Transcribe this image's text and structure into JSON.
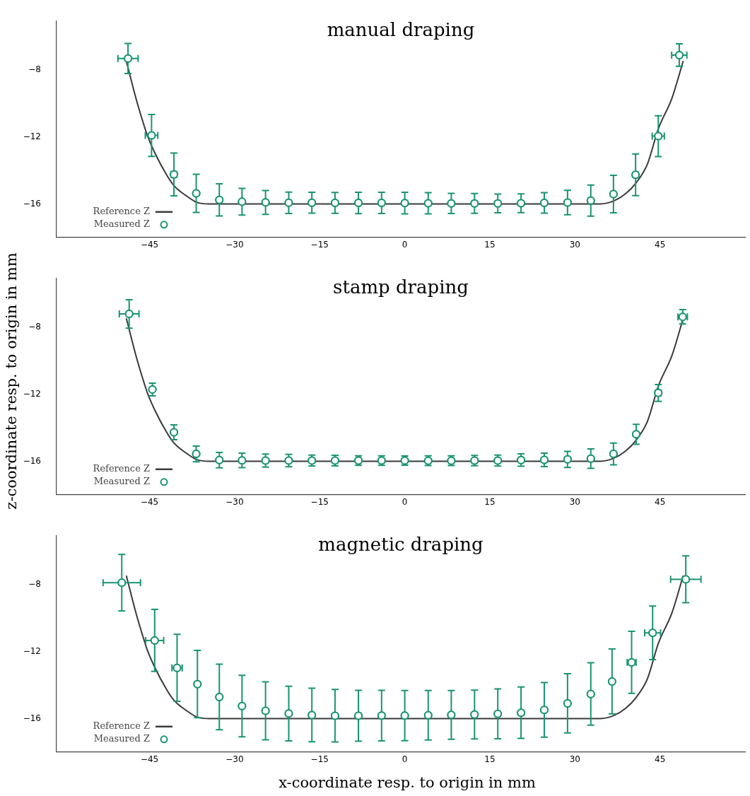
{
  "chart_data": [
    {
      "type": "scatter",
      "title": "manual draping",
      "xlim": [
        -61.4,
        60
      ],
      "xticks": [
        -45,
        -30,
        -15,
        0,
        15,
        30,
        45
      ],
      "ylim": [
        -18,
        -5.05
      ],
      "yticks": [
        -16,
        -12,
        -8
      ],
      "legend": "bottom left",
      "grid": false,
      "series": [
        {
          "name": "Reference Z",
          "type": "line",
          "color": "#3a3a3a",
          "marker": "none",
          "x": [
            -49.1,
            -47.4,
            -46.26,
            -45.4,
            -44.07,
            -42.0,
            -40.7,
            -38.3,
            -36.7,
            -34.5,
            34.5,
            36.8,
            38.9,
            40.7,
            42.8,
            44.7,
            47.1,
            49.1
          ],
          "values": [
            -7.46,
            -9.69,
            -11.0,
            -11.9,
            -12.95,
            -14.26,
            -14.91,
            -15.57,
            -15.9,
            -16.0,
            -16.0,
            -15.83,
            -15.4,
            -14.78,
            -13.61,
            -11.52,
            -9.69,
            -7.46
          ]
        },
        {
          "name": "Measured Z",
          "type": "scatter",
          "color": "#199473",
          "marker": "circle",
          "x": [
            -48.8,
            -44.65,
            -40.7,
            -36.77,
            -32.7,
            -28.7,
            -24.55,
            -20.46,
            -16.38,
            -12.3,
            -8.17,
            -4.09,
            0,
            4.13,
            8.2,
            12.3,
            16.4,
            20.5,
            24.6,
            28.7,
            32.8,
            36.8,
            40.7,
            44.7,
            48.4
          ],
          "values": [
            -7.31,
            -11.91,
            -14.24,
            -15.37,
            -15.76,
            -15.87,
            -15.91,
            -15.93,
            -15.93,
            -15.94,
            -15.94,
            -15.94,
            -15.95,
            -15.96,
            -15.97,
            -15.97,
            -15.97,
            -15.96,
            -15.94,
            -15.92,
            -15.8,
            -15.41,
            -14.26,
            -11.95,
            -7.11
          ],
          "errors": [
            0.9,
            1.25,
            1.28,
            1.14,
            0.96,
            0.8,
            0.71,
            0.64,
            0.62,
            0.62,
            0.64,
            0.63,
            0.64,
            0.63,
            0.6,
            0.59,
            0.56,
            0.56,
            0.61,
            0.73,
            0.93,
            1.12,
            1.25,
            1.22,
            0.67
          ],
          "xerrors": [
            1.78,
            1.1,
            0.5,
            null,
            null,
            null,
            null,
            null,
            null,
            null,
            null,
            null,
            null,
            null,
            null,
            null,
            null,
            null,
            null,
            null,
            null,
            null,
            0.4,
            1.07,
            1.34
          ]
        }
      ]
    },
    {
      "type": "scatter",
      "title": "stamp draping",
      "ylabel": "z-coordinate resp. to origin in mm",
      "xlim": [
        -61.4,
        60
      ],
      "xticks": [
        -45,
        -30,
        -15,
        0,
        15,
        30,
        45
      ],
      "ylim": [
        -18,
        -5.05
      ],
      "yticks": [
        -16,
        -12,
        -8
      ],
      "legend": "bottom left",
      "grid": false,
      "series": [
        {
          "name": "Reference Z",
          "type": "line",
          "color": "#3a3a3a",
          "marker": "none",
          "x": [
            -49.1,
            -47.4,
            -46.26,
            -45.4,
            -44.07,
            -42.0,
            -40.7,
            -38.3,
            -36.7,
            -34.5,
            34.5,
            36.8,
            38.9,
            40.7,
            42.8,
            44.7,
            47.1,
            49.1
          ],
          "values": [
            -7.46,
            -9.69,
            -11.0,
            -11.9,
            -12.95,
            -14.26,
            -14.91,
            -15.57,
            -15.9,
            -16.0,
            -16.0,
            -15.83,
            -15.4,
            -14.78,
            -13.61,
            -11.52,
            -9.69,
            -7.46
          ]
        },
        {
          "name": "Measured Z",
          "type": "scatter",
          "color": "#199473",
          "marker": "circle",
          "x": [
            -48.6,
            -44.5,
            -40.7,
            -36.77,
            -32.7,
            -28.7,
            -24.55,
            -20.46,
            -16.38,
            -12.3,
            -8.17,
            -4.09,
            0,
            4.13,
            8.2,
            12.3,
            16.4,
            20.5,
            24.6,
            28.7,
            32.8,
            36.8,
            40.8,
            44.7,
            49.0
          ],
          "values": [
            -7.2,
            -11.71,
            -14.27,
            -15.56,
            -15.93,
            -15.95,
            -15.96,
            -15.96,
            -15.96,
            -15.96,
            -15.96,
            -15.96,
            -15.96,
            -15.97,
            -15.97,
            -15.96,
            -15.96,
            -15.93,
            -15.92,
            -15.89,
            -15.84,
            -15.56,
            -14.39,
            -11.92,
            -7.37
          ],
          "errors": [
            0.85,
            0.38,
            0.44,
            0.47,
            0.46,
            0.43,
            0.39,
            0.37,
            0.33,
            0.32,
            0.29,
            0.29,
            0.27,
            0.29,
            0.29,
            0.31,
            0.33,
            0.37,
            0.4,
            0.48,
            0.58,
            0.65,
            0.6,
            0.5,
            0.43
          ],
          "xerrors": [
            1.73,
            null,
            null,
            null,
            null,
            null,
            null,
            null,
            null,
            null,
            null,
            null,
            null,
            null,
            null,
            null,
            null,
            null,
            null,
            null,
            null,
            null,
            null,
            0.5,
            0.83
          ]
        }
      ]
    },
    {
      "type": "scatter",
      "title": "magnetic draping",
      "xlabel": "x-coordinate resp. to origin in mm",
      "xlim": [
        -61.4,
        60
      ],
      "xticks": [
        -45,
        -30,
        -15,
        0,
        15,
        30,
        45
      ],
      "ylim": [
        -18,
        -5.05
      ],
      "yticks": [
        -16,
        -12,
        -8
      ],
      "legend": "bottom left",
      "grid": false,
      "series": [
        {
          "name": "Reference Z",
          "type": "line",
          "color": "#3a3a3a",
          "marker": "none",
          "x": [
            -49.1,
            -47.4,
            -46.26,
            -45.4,
            -44.07,
            -42.0,
            -40.7,
            -38.3,
            -36.7,
            -34.5,
            34.5,
            36.8,
            38.9,
            40.7,
            42.8,
            44.7,
            47.1,
            49.1
          ],
          "values": [
            -7.46,
            -9.69,
            -11.0,
            -11.9,
            -12.95,
            -14.26,
            -14.91,
            -15.57,
            -15.9,
            -16.0,
            -16.0,
            -15.83,
            -15.4,
            -14.78,
            -13.61,
            -11.52,
            -9.69,
            -7.46
          ]
        },
        {
          "name": "Measured Z",
          "type": "scatter",
          "color": "#199473",
          "marker": "circle",
          "x": [
            -49.9,
            -44.1,
            -40.15,
            -36.56,
            -32.7,
            -28.7,
            -24.55,
            -20.46,
            -16.38,
            -12.3,
            -8.17,
            -4.09,
            0,
            4.13,
            8.2,
            12.3,
            16.4,
            20.5,
            24.6,
            28.7,
            32.8,
            36.55,
            40.0,
            43.7,
            49.55
          ],
          "values": [
            -7.88,
            -11.33,
            -12.97,
            -13.94,
            -14.71,
            -15.25,
            -15.54,
            -15.7,
            -15.79,
            -15.83,
            -15.83,
            -15.82,
            -15.82,
            -15.8,
            -15.78,
            -15.76,
            -15.72,
            -15.65,
            -15.48,
            -15.09,
            -14.53,
            -13.78,
            -12.64,
            -10.88,
            -7.68
          ],
          "errors": [
            1.69,
            1.85,
            2.0,
            2.01,
            1.96,
            1.84,
            1.73,
            1.63,
            1.6,
            1.57,
            1.52,
            1.51,
            1.5,
            1.48,
            1.46,
            1.46,
            1.49,
            1.54,
            1.63,
            1.77,
            1.86,
            1.94,
            1.85,
            1.6,
            1.4
          ],
          "xerrors": [
            3.3,
            1.59,
            0.9,
            null,
            null,
            null,
            null,
            null,
            null,
            null,
            null,
            null,
            null,
            null,
            null,
            null,
            null,
            null,
            null,
            null,
            null,
            null,
            0.78,
            1.4,
            2.68
          ]
        }
      ]
    }
  ]
}
